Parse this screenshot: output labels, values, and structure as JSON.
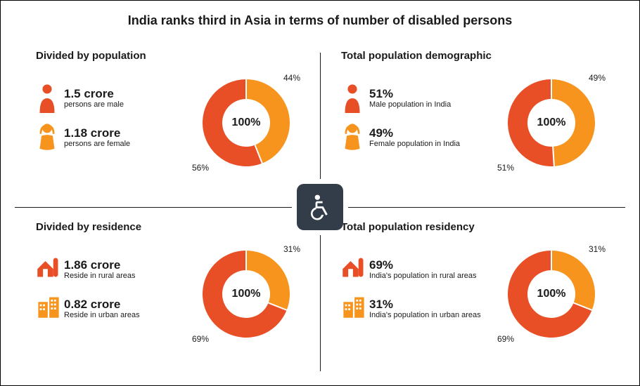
{
  "title": "India ranks third in Asia in terms of number of disabled persons",
  "colors": {
    "primary": "#e94f26",
    "secondary": "#f7941d",
    "text": "#1a1a1a",
    "badge_bg": "#323d49",
    "badge_icon": "#ffffff"
  },
  "layout": {
    "donut_outer_r": 62,
    "donut_inner_r": 34,
    "center_badge_size": 66
  },
  "quadrants": {
    "tl": {
      "title": "Divided by population",
      "stat1": {
        "value": "1.5 crore",
        "label": "persons are male",
        "icon": "male",
        "icon_color": "#e94f26"
      },
      "stat2": {
        "value": "1.18 crore",
        "label": "persons are female",
        "icon": "female",
        "icon_color": "#f7941d"
      },
      "chart": {
        "type": "donut",
        "center_text": "100%",
        "slices": [
          {
            "pct": 44,
            "color": "#f7941d",
            "label": "44%",
            "label_pos": "top-right"
          },
          {
            "pct": 56,
            "color": "#e94f26",
            "label": "56%",
            "label_pos": "bottom-left"
          }
        ]
      }
    },
    "tr": {
      "title": "Total population demographic",
      "stat1": {
        "value": "51%",
        "label": "Male population in India",
        "icon": "male",
        "icon_color": "#e94f26"
      },
      "stat2": {
        "value": "49%",
        "label": "Female population in India",
        "icon": "female",
        "icon_color": "#f7941d"
      },
      "chart": {
        "type": "donut",
        "center_text": "100%",
        "slices": [
          {
            "pct": 49,
            "color": "#f7941d",
            "label": "49%",
            "label_pos": "top-right"
          },
          {
            "pct": 51,
            "color": "#e94f26",
            "label": "51%",
            "label_pos": "bottom-left"
          }
        ]
      }
    },
    "bl": {
      "title": "Divided by residence",
      "stat1": {
        "value": "1.86 crore",
        "label": "Reside in rural areas",
        "icon": "rural",
        "icon_color": "#e94f26"
      },
      "stat2": {
        "value": "0.82 crore",
        "label": "Reside in urban areas",
        "icon": "urban",
        "icon_color": "#f7941d"
      },
      "chart": {
        "type": "donut",
        "center_text": "100%",
        "slices": [
          {
            "pct": 31,
            "color": "#f7941d",
            "label": "31%",
            "label_pos": "top-right"
          },
          {
            "pct": 69,
            "color": "#e94f26",
            "label": "69%",
            "label_pos": "bottom-left"
          }
        ]
      }
    },
    "br": {
      "title": "Total population residency",
      "stat1": {
        "value": "69%",
        "label": "India's population in rural areas",
        "icon": "rural",
        "icon_color": "#e94f26"
      },
      "stat2": {
        "value": "31%",
        "label": "India's population in urban areas",
        "icon": "urban",
        "icon_color": "#f7941d"
      },
      "chart": {
        "type": "donut",
        "center_text": "100%",
        "slices": [
          {
            "pct": 31,
            "color": "#f7941d",
            "label": "31%",
            "label_pos": "top-right"
          },
          {
            "pct": 69,
            "color": "#e94f26",
            "label": "69%",
            "label_pos": "bottom-left"
          }
        ]
      }
    }
  }
}
